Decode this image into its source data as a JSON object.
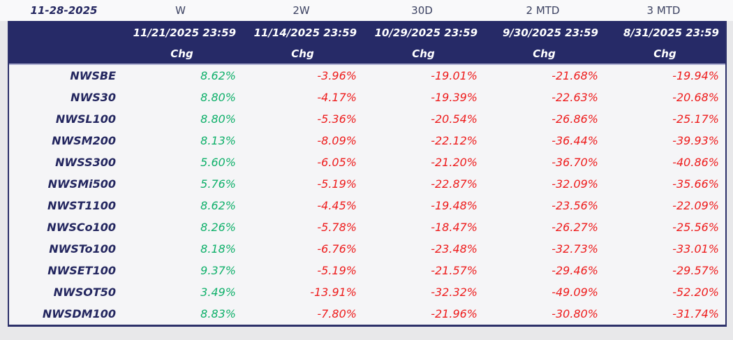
{
  "report": {
    "date": "11-28-2025",
    "columns": [
      {
        "period": "W",
        "as_of": "11/21/2025 23:59",
        "chg_label": "Chg"
      },
      {
        "period": "2W",
        "as_of": "11/14/2025 23:59",
        "chg_label": "Chg"
      },
      {
        "period": "30D",
        "as_of": "10/29/2025 23:59",
        "chg_label": "Chg"
      },
      {
        "period": "2 MTD",
        "as_of": "9/30/2025 23:59",
        "chg_label": "Chg"
      },
      {
        "period": "3 MTD",
        "as_of": "8/31/2025 23:59",
        "chg_label": "Chg"
      }
    ],
    "rows": [
      {
        "name": "NWSBE",
        "values": [
          "8.62%",
          "-3.96%",
          "-19.01%",
          "-21.68%",
          "-19.94%"
        ]
      },
      {
        "name": "NWS30",
        "values": [
          "8.80%",
          "-4.17%",
          "-19.39%",
          "-22.63%",
          "-20.68%"
        ]
      },
      {
        "name": "NWSL100",
        "values": [
          "8.80%",
          "-5.36%",
          "-20.54%",
          "-26.86%",
          "-25.17%"
        ]
      },
      {
        "name": "NWSM200",
        "values": [
          "8.13%",
          "-8.09%",
          "-22.12%",
          "-36.44%",
          "-39.93%"
        ]
      },
      {
        "name": "NWSS300",
        "values": [
          "5.60%",
          "-6.05%",
          "-21.20%",
          "-36.70%",
          "-40.86%"
        ]
      },
      {
        "name": "NWSMi500",
        "values": [
          "5.76%",
          "-5.19%",
          "-22.87%",
          "-32.09%",
          "-35.66%"
        ]
      },
      {
        "name": "NWST1100",
        "values": [
          "8.62%",
          "-4.45%",
          "-19.48%",
          "-23.56%",
          "-22.09%"
        ]
      },
      {
        "name": "NWSCo100",
        "values": [
          "8.26%",
          "-5.78%",
          "-18.47%",
          "-26.27%",
          "-25.56%"
        ]
      },
      {
        "name": "NWSTo100",
        "values": [
          "8.18%",
          "-6.76%",
          "-23.48%",
          "-32.73%",
          "-33.01%"
        ]
      },
      {
        "name": "NWSET100",
        "values": [
          "9.37%",
          "-5.19%",
          "-21.57%",
          "-29.46%",
          "-29.57%"
        ]
      },
      {
        "name": "NWSOT50",
        "values": [
          "3.49%",
          "-13.91%",
          "-32.32%",
          "-49.09%",
          "-52.20%"
        ]
      },
      {
        "name": "NWSDM100",
        "values": [
          "8.83%",
          "-7.80%",
          "-21.96%",
          "-30.80%",
          "-31.74%"
        ]
      }
    ],
    "colors": {
      "positive": "#0fb06a",
      "negative": "#ee1c1c",
      "header_bg": "#262a67",
      "index_text": "#23265f",
      "period_text": "#3c4261",
      "body_bg": "#f5f5f7",
      "strip_bg": "#f9f9fa",
      "page_bg": "#e8e8ea",
      "border": "#2c3069",
      "separator": "#a9abce"
    }
  },
  "chart_data": {
    "type": "table",
    "title": "Index percentage change by period as of 11-28-2025",
    "columns": [
      "W (11/21/2025 23:59)",
      "2W (11/14/2025 23:59)",
      "30D (10/29/2025 23:59)",
      "2 MTD (9/30/2025 23:59)",
      "3 MTD (8/31/2025 23:59)"
    ],
    "categories": [
      "NWSBE",
      "NWS30",
      "NWSL100",
      "NWSM200",
      "NWSS300",
      "NWSMi500",
      "NWST1100",
      "NWSCo100",
      "NWSTo100",
      "NWSET100",
      "NWSOT50",
      "NWSDM100"
    ],
    "series": [
      {
        "name": "W",
        "values": [
          8.62,
          8.8,
          8.8,
          8.13,
          5.6,
          5.76,
          8.62,
          8.26,
          8.18,
          9.37,
          3.49,
          8.83
        ]
      },
      {
        "name": "2W",
        "values": [
          -3.96,
          -4.17,
          -5.36,
          -8.09,
          -6.05,
          -5.19,
          -4.45,
          -5.78,
          -6.76,
          -5.19,
          -13.91,
          -7.8
        ]
      },
      {
        "name": "30D",
        "values": [
          -19.01,
          -19.39,
          -20.54,
          -22.12,
          -21.2,
          -22.87,
          -19.48,
          -18.47,
          -23.48,
          -21.57,
          -32.32,
          -21.96
        ]
      },
      {
        "name": "2 MTD",
        "values": [
          -21.68,
          -22.63,
          -26.86,
          -36.44,
          -36.7,
          -32.09,
          -23.56,
          -26.27,
          -32.73,
          -29.46,
          -49.09,
          -30.8
        ]
      },
      {
        "name": "3 MTD",
        "values": [
          -19.94,
          -20.68,
          -25.17,
          -39.93,
          -40.86,
          -35.66,
          -22.09,
          -25.56,
          -33.01,
          -29.57,
          -52.2,
          -31.74
        ]
      }
    ],
    "units": "percent",
    "legend_position": "none",
    "grid": false
  }
}
